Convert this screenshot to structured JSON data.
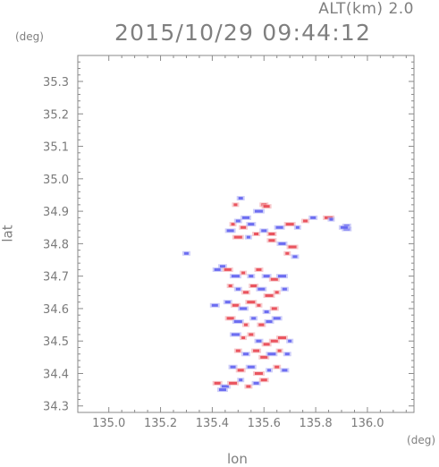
{
  "header": {
    "altitude_label": "ALT(km) 2.0",
    "datetime": "2015/10/29 09:44:12"
  },
  "chart_data": {
    "type": "scatter",
    "title": "2015/10/29 09:44:12",
    "subtitle": "ALT(km) 2.0",
    "xlabel": "lon",
    "ylabel": "lat",
    "x_unit": "(deg)",
    "y_unit": "(deg)",
    "xlim": [
      134.88,
      136.18
    ],
    "ylim": [
      34.28,
      35.38
    ],
    "x_ticks": [
      "135.0",
      "135.2",
      "135.4",
      "135.6",
      "135.8",
      "136.0"
    ],
    "y_ticks": [
      "34.3",
      "34.4",
      "34.5",
      "34.6",
      "34.7",
      "34.8",
      "34.9",
      "35.0",
      "35.1",
      "35.2",
      "35.3"
    ],
    "grid": false,
    "colors": {
      "positive": "#e8404a",
      "negative": "#5a5cf0",
      "axis": "#8a8a8a"
    },
    "series": [
      {
        "values": [
          [
            135.49,
            34.92,
            1
          ],
          [
            135.51,
            34.94,
            -1
          ],
          [
            135.6,
            34.92,
            1
          ],
          [
            135.61,
            34.915,
            1
          ],
          [
            135.53,
            34.88,
            -1
          ],
          [
            135.58,
            34.9,
            -1
          ],
          [
            135.48,
            34.86,
            1
          ],
          [
            135.5,
            34.87,
            -1
          ],
          [
            135.52,
            34.85,
            1
          ],
          [
            135.55,
            34.86,
            -1
          ],
          [
            135.47,
            34.84,
            -1
          ],
          [
            135.5,
            34.82,
            1
          ],
          [
            135.54,
            34.82,
            -1
          ],
          [
            135.57,
            34.83,
            1
          ],
          [
            135.6,
            34.84,
            -1
          ],
          [
            135.63,
            34.83,
            1
          ],
          [
            135.66,
            34.85,
            -1
          ],
          [
            135.7,
            34.86,
            1
          ],
          [
            135.73,
            34.85,
            -1
          ],
          [
            135.76,
            34.87,
            1
          ],
          [
            135.79,
            34.88,
            -1
          ],
          [
            135.63,
            34.81,
            1
          ],
          [
            135.67,
            34.8,
            -1
          ],
          [
            135.71,
            34.79,
            1
          ],
          [
            135.69,
            34.77,
            1
          ],
          [
            135.72,
            34.76,
            -1
          ],
          [
            135.92,
            34.855,
            -1
          ],
          [
            135.92,
            34.845,
            -1
          ],
          [
            135.91,
            34.85,
            -1
          ],
          [
            135.85,
            34.88,
            1
          ],
          [
            135.86,
            34.875,
            -1
          ],
          [
            135.3,
            34.77,
            -1
          ],
          [
            135.44,
            34.73,
            -1
          ],
          [
            135.42,
            34.72,
            -1
          ],
          [
            135.46,
            34.72,
            1
          ],
          [
            135.49,
            34.7,
            -1
          ],
          [
            135.52,
            34.71,
            1
          ],
          [
            135.55,
            34.7,
            -1
          ],
          [
            135.58,
            34.72,
            1
          ],
          [
            135.61,
            34.7,
            -1
          ],
          [
            135.64,
            34.69,
            1
          ],
          [
            135.67,
            34.7,
            -1
          ],
          [
            135.47,
            34.67,
            1
          ],
          [
            135.5,
            34.66,
            -1
          ],
          [
            135.53,
            34.65,
            1
          ],
          [
            135.56,
            34.67,
            1
          ],
          [
            135.59,
            34.66,
            -1
          ],
          [
            135.62,
            34.64,
            1
          ],
          [
            135.65,
            34.65,
            1
          ],
          [
            135.68,
            34.66,
            -1
          ],
          [
            135.46,
            34.62,
            -1
          ],
          [
            135.49,
            34.61,
            1
          ],
          [
            135.52,
            34.6,
            -1
          ],
          [
            135.55,
            34.62,
            1
          ],
          [
            135.58,
            34.61,
            1
          ],
          [
            135.61,
            34.59,
            -1
          ],
          [
            135.64,
            34.6,
            1
          ],
          [
            135.41,
            34.61,
            -1
          ],
          [
            135.47,
            34.57,
            1
          ],
          [
            135.5,
            34.56,
            -1
          ],
          [
            135.53,
            34.55,
            1
          ],
          [
            135.56,
            34.57,
            -1
          ],
          [
            135.59,
            34.55,
            1
          ],
          [
            135.62,
            34.56,
            -1
          ],
          [
            135.65,
            34.57,
            -1
          ],
          [
            135.49,
            34.52,
            -1
          ],
          [
            135.52,
            34.51,
            1
          ],
          [
            135.55,
            34.52,
            1
          ],
          [
            135.58,
            34.5,
            -1
          ],
          [
            135.61,
            34.49,
            1
          ],
          [
            135.64,
            34.5,
            1
          ],
          [
            135.67,
            34.51,
            1
          ],
          [
            135.7,
            34.5,
            -1
          ],
          [
            135.5,
            34.47,
            1
          ],
          [
            135.53,
            34.46,
            -1
          ],
          [
            135.57,
            34.47,
            1
          ],
          [
            135.6,
            34.45,
            1
          ],
          [
            135.63,
            34.46,
            -1
          ],
          [
            135.66,
            34.47,
            1
          ],
          [
            135.69,
            34.46,
            -1
          ],
          [
            135.48,
            34.42,
            -1
          ],
          [
            135.51,
            34.41,
            1
          ],
          [
            135.55,
            34.42,
            -1
          ],
          [
            135.58,
            34.4,
            1
          ],
          [
            135.62,
            34.41,
            -1
          ],
          [
            135.65,
            34.42,
            1
          ],
          [
            135.68,
            34.41,
            -1
          ],
          [
            135.42,
            34.37,
            1
          ],
          [
            135.45,
            34.36,
            -1
          ],
          [
            135.48,
            34.37,
            1
          ],
          [
            135.51,
            34.38,
            -1
          ],
          [
            135.54,
            34.36,
            1
          ],
          [
            135.57,
            34.37,
            -1
          ],
          [
            135.6,
            34.38,
            1
          ],
          [
            135.44,
            34.35,
            -1
          ]
        ]
      }
    ]
  }
}
